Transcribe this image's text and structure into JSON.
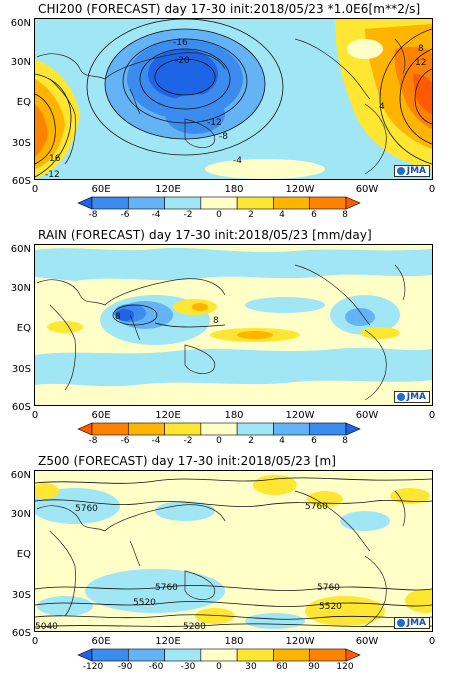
{
  "panels": [
    {
      "title": "CHI200 (FORECAST) day 17-30 init:2018/05/23   *1.0E6[m**2/s]",
      "lat_labels": [
        "60N",
        "30N",
        "EQ",
        "30S",
        "60S"
      ],
      "lon_labels": [
        "0",
        "60E",
        "120E",
        "180",
        "120W",
        "60W",
        "0"
      ],
      "colorbar_labels": [
        "-8",
        "-6",
        "-4",
        "-2",
        "0",
        "2",
        "4",
        "6",
        "8"
      ],
      "colorbar_colors": [
        "#1e64e6",
        "#3c8cf0",
        "#64b4f5",
        "#a0e6f5",
        "#ffffc8",
        "#ffe632",
        "#ffb400",
        "#ff8200",
        "#ff5a00"
      ],
      "contour_labels": [
        "-16",
        "-20",
        "-12",
        "-8",
        "-4",
        "4",
        "8",
        "12",
        "16",
        "-12"
      ],
      "logo": "JMA"
    },
    {
      "title": "RAIN (FORECAST) day 17-30 init:2018/05/23   [mm/day]",
      "lat_labels": [
        "60N",
        "30N",
        "EQ",
        "30S",
        "60S"
      ],
      "lon_labels": [
        "0",
        "60E",
        "120E",
        "180",
        "120W",
        "60W",
        "0"
      ],
      "colorbar_labels": [
        "-8",
        "-6",
        "-4",
        "-2",
        "0",
        "2",
        "4",
        "6",
        "8"
      ],
      "colorbar_colors": [
        "#ff5a00",
        "#ff8200",
        "#ffb400",
        "#ffe632",
        "#ffffc8",
        "#a0e6f5",
        "#64b4f5",
        "#3c8cf0",
        "#1e64e6"
      ],
      "contour_labels": [
        "8",
        "8"
      ],
      "logo": "JMA"
    },
    {
      "title": "Z500 (FORECAST) day 17-30 init:2018/05/23   [m]",
      "lat_labels": [
        "60N",
        "30N",
        "EQ",
        "30S",
        "60S"
      ],
      "lon_labels": [
        "0",
        "60E",
        "120E",
        "180",
        "120W",
        "60W",
        "0"
      ],
      "colorbar_labels": [
        "-120",
        "-90",
        "-60",
        "-30",
        "0",
        "30",
        "60",
        "90",
        "120"
      ],
      "colorbar_colors": [
        "#1e64e6",
        "#3c8cf0",
        "#64b4f5",
        "#a0e6f5",
        "#ffffc8",
        "#ffe632",
        "#ffb400",
        "#ff8200",
        "#ff5a00"
      ],
      "contour_labels": [
        "5760",
        "5760",
        "5760",
        "5760",
        "5520",
        "5520",
        "5280",
        "5040"
      ],
      "logo": "JMA"
    }
  ]
}
